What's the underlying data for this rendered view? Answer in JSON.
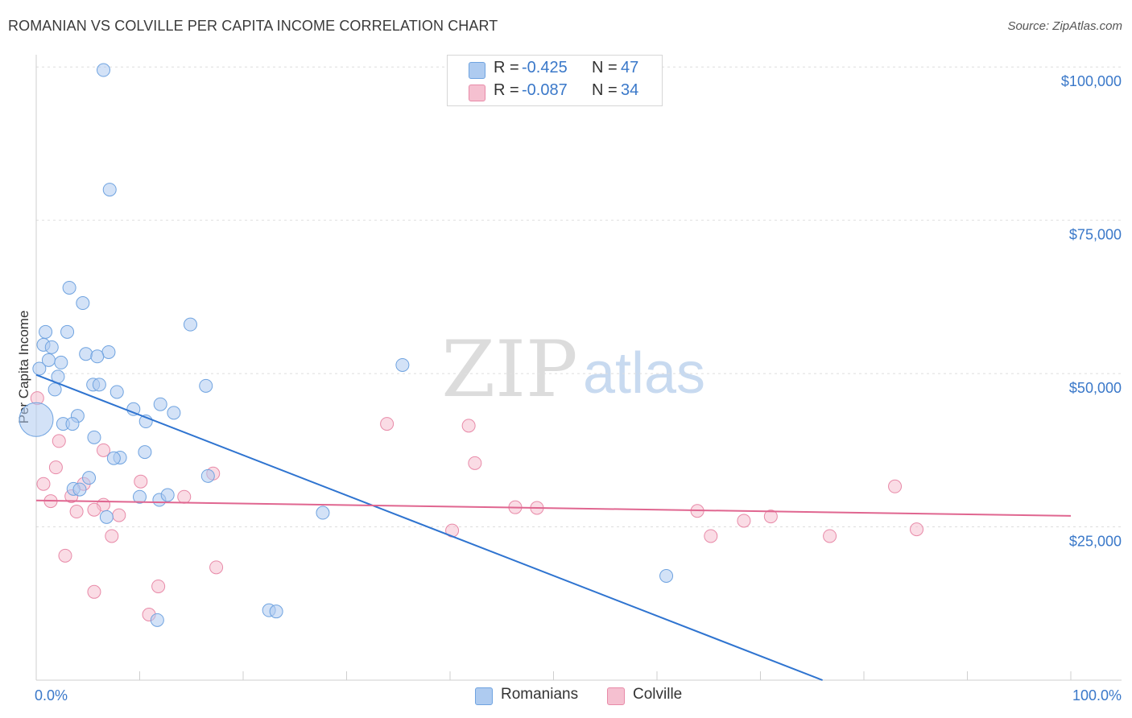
{
  "chart_data": {
    "type": "scatter",
    "title": "ROMANIAN VS COLVILLE PER CAPITA INCOME CORRELATION CHART",
    "source": "Source: ZipAtlas.com",
    "xlabel": "",
    "ylabel": "Per Capita Income",
    "xlim": [
      0,
      100
    ],
    "ylim": [
      0,
      102000
    ],
    "x_tick_labels": [
      "0.0%",
      "100.0%"
    ],
    "y_ticks": [
      {
        "value": 100000,
        "label": "$100,000"
      },
      {
        "value": 75000,
        "label": "$75,000"
      },
      {
        "value": 50000,
        "label": "$50,000"
      },
      {
        "value": 25000,
        "label": "$25,000"
      }
    ],
    "watermark": {
      "zip": "ZIP",
      "atlas": "atlas"
    },
    "legend": [
      {
        "series": "Romanians",
        "r_label": "R =",
        "r_value": "-0.425",
        "n_label": "N =",
        "n_value": "47"
      },
      {
        "series": "Colville",
        "r_label": "R =",
        "r_value": "-0.087",
        "n_label": "N =",
        "n_value": "34"
      }
    ],
    "series": [
      {
        "name": "Romanians",
        "color": "#6fa3e0",
        "fill": "#aecbf0",
        "line_color": "#2f74d0",
        "trend": {
          "x0": 0,
          "y0": 49800,
          "x1": 76,
          "y1": 0
        },
        "points": [
          [
            6.5,
            99500
          ],
          [
            7.1,
            80000
          ],
          [
            3.2,
            64000
          ],
          [
            4.5,
            61500
          ],
          [
            14.9,
            58000
          ],
          [
            0.9,
            56800
          ],
          [
            3.0,
            56800
          ],
          [
            0.7,
            54700
          ],
          [
            1.5,
            54300
          ],
          [
            7.0,
            53500
          ],
          [
            4.8,
            53200
          ],
          [
            5.9,
            52800
          ],
          [
            1.2,
            52200
          ],
          [
            2.4,
            51800
          ],
          [
            35.4,
            51400
          ],
          [
            0.3,
            50800
          ],
          [
            2.1,
            49500
          ],
          [
            5.5,
            48200
          ],
          [
            6.1,
            48200
          ],
          [
            16.4,
            48000
          ],
          [
            1.8,
            47400
          ],
          [
            7.8,
            47000
          ],
          [
            9.4,
            44200
          ],
          [
            12.0,
            45000
          ],
          [
            13.3,
            43600
          ],
          [
            4.0,
            43100
          ],
          [
            10.6,
            42200
          ],
          [
            2.6,
            41800
          ],
          [
            3.5,
            41800
          ],
          [
            0.0,
            42500
          ],
          [
            5.6,
            39600
          ],
          [
            8.1,
            36300
          ],
          [
            7.5,
            36200
          ],
          [
            10.5,
            37200
          ],
          [
            5.1,
            33000
          ],
          [
            16.6,
            33300
          ],
          [
            3.6,
            31200
          ],
          [
            4.2,
            31100
          ],
          [
            10.0,
            29900
          ],
          [
            11.9,
            29400
          ],
          [
            12.7,
            30200
          ],
          [
            27.7,
            27300
          ],
          [
            6.8,
            26600
          ],
          [
            60.9,
            17000
          ],
          [
            22.5,
            11400
          ],
          [
            23.2,
            11200
          ],
          [
            11.7,
            9800
          ]
        ]
      },
      {
        "name": "Colville",
        "color": "#e88aa8",
        "fill": "#f5c0d0",
        "line_color": "#e06690",
        "trend": {
          "x0": 0,
          "y0": 29300,
          "x1": 100,
          "y1": 26800
        },
        "points": [
          [
            0.1,
            46000
          ],
          [
            2.2,
            39000
          ],
          [
            6.5,
            37500
          ],
          [
            1.9,
            34700
          ],
          [
            41.8,
            41500
          ],
          [
            33.9,
            41800
          ],
          [
            42.4,
            35400
          ],
          [
            17.1,
            33700
          ],
          [
            0.7,
            32000
          ],
          [
            4.6,
            32000
          ],
          [
            10.1,
            32400
          ],
          [
            83.0,
            31600
          ],
          [
            1.4,
            29200
          ],
          [
            3.4,
            30000
          ],
          [
            14.3,
            29900
          ],
          [
            6.5,
            28600
          ],
          [
            3.9,
            27500
          ],
          [
            5.6,
            27800
          ],
          [
            8.0,
            26900
          ],
          [
            46.3,
            28200
          ],
          [
            48.4,
            28100
          ],
          [
            63.9,
            27600
          ],
          [
            71.0,
            26700
          ],
          [
            68.4,
            26000
          ],
          [
            40.2,
            24400
          ],
          [
            85.1,
            24600
          ],
          [
            7.3,
            23500
          ],
          [
            65.2,
            23500
          ],
          [
            76.7,
            23500
          ],
          [
            2.8,
            20300
          ],
          [
            17.4,
            18400
          ],
          [
            11.8,
            15300
          ],
          [
            5.6,
            14400
          ],
          [
            10.9,
            10700
          ]
        ]
      }
    ]
  }
}
